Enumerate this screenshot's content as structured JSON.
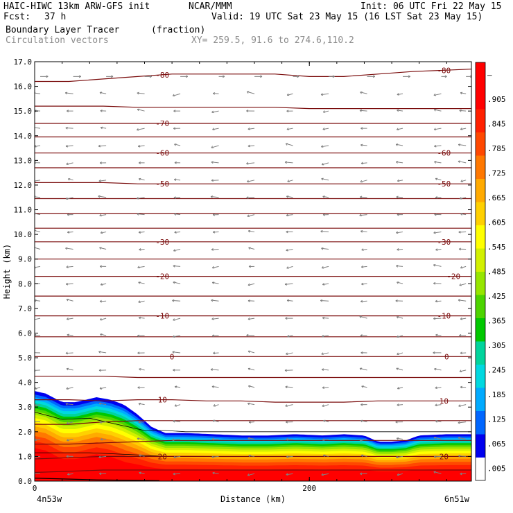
{
  "header": {
    "model": "HAIC-HIWC 13km ARW-GFS init",
    "center": "NCAR/MMM",
    "init": "Init: 06 UTC Fri 22 May 15",
    "fcst_label": "Fcst:",
    "fcst_value": "37 h",
    "valid": "Valid: 19 UTC Sat 23 May 15 (16 LST Sat 23 May 15)",
    "field1_name": "Boundary Layer Tracer",
    "field1_units": "(fraction)",
    "field2_name": "Circulation vectors",
    "xy_range": "XY= 259.5, 91.6 to 274.6,110.2"
  },
  "chart_data": {
    "type": "heatmap",
    "title": "Boundary Layer Tracer",
    "xlabel": "Distance (km)",
    "ylabel": "Height (km)",
    "xlim": [
      0,
      318
    ],
    "ylim": [
      0,
      17
    ],
    "x_ticks": [
      {
        "v": 0,
        "label": "0"
      },
      {
        "v": 200,
        "label": "200"
      }
    ],
    "x_end_labels": {
      "left": "4n53w",
      "right": "6n51w"
    },
    "y_ticks": [
      "0.0",
      "1.0",
      "2.0",
      "3.0",
      "4.0",
      "5.0",
      "6.0",
      "7.0",
      "8.0",
      "9.0",
      "10.0",
      "11.0",
      "12.0",
      "13.0",
      "14.0",
      "15.0",
      "16.0",
      "17.0"
    ],
    "colorbar": {
      "labels": [
        ".005",
        ".065",
        ".125",
        ".185",
        ".245",
        ".305",
        ".365",
        ".425",
        ".485",
        ".545",
        ".605",
        ".665",
        ".725",
        ".785",
        ".845",
        ".905",
        "–"
      ],
      "colors": [
        "#ffffff",
        "#0000ee",
        "#0066ff",
        "#00aaff",
        "#00d8e0",
        "#00d49c",
        "#00c800",
        "#4cd400",
        "#96e600",
        "#d2f000",
        "#ffff00",
        "#ffd000",
        "#ffaa00",
        "#ff7800",
        "#ff4800",
        "#ff2000",
        "#ff0000",
        "#ff0000"
      ]
    },
    "tracer_top_km": {
      "x": [
        0,
        8,
        20,
        30,
        45,
        55,
        65,
        75,
        85,
        95,
        110,
        130,
        150,
        170,
        190,
        210,
        225,
        240,
        250,
        260,
        270,
        280,
        300,
        318
      ],
      "y": [
        3.65,
        3.55,
        3.2,
        3.2,
        3.4,
        3.3,
        3.1,
        2.7,
        2.2,
        1.95,
        1.95,
        1.9,
        1.85,
        1.85,
        1.9,
        1.85,
        1.9,
        1.85,
        1.6,
        1.6,
        1.65,
        1.85,
        1.9,
        1.9
      ]
    },
    "isotherms": [
      {
        "label": "-80",
        "y": [
          16.2,
          16.2,
          16.3,
          16.4,
          16.5,
          16.5,
          16.5,
          16.5,
          16.4,
          16.4,
          16.5,
          16.6,
          16.7
        ],
        "label_x": [
          93,
          298
        ]
      },
      {
        "label": "",
        "y": [
          15.2,
          15.2,
          15.2,
          15.15,
          15.15,
          15.15,
          15.15,
          15.15,
          15.1,
          15.1,
          15.1,
          15.1,
          15.1
        ],
        "label_x": []
      },
      {
        "label": "-70",
        "y": [
          14.5,
          14.5,
          14.5,
          14.5,
          14.5,
          14.5,
          14.5,
          14.5,
          14.5,
          14.5,
          14.5,
          14.5,
          14.5
        ],
        "label_x": [
          93
        ]
      },
      {
        "label": "",
        "y": [
          13.95,
          13.95,
          13.95,
          13.95,
          13.95,
          13.95,
          13.95,
          13.95,
          13.95,
          13.95,
          13.95,
          13.95,
          13.95
        ],
        "label_x": []
      },
      {
        "label": "-60",
        "y": [
          13.3,
          13.3,
          13.3,
          13.3,
          13.3,
          13.3,
          13.3,
          13.3,
          13.3,
          13.3,
          13.3,
          13.3,
          13.3
        ],
        "label_x": [
          93,
          298
        ]
      },
      {
        "label": "",
        "y": [
          12.7,
          12.7,
          12.7,
          12.7,
          12.7,
          12.7,
          12.7,
          12.7,
          12.7,
          12.7,
          12.7,
          12.7,
          12.7
        ],
        "label_x": []
      },
      {
        "label": "-50",
        "y": [
          12.1,
          12.1,
          12.1,
          12.05,
          12.05,
          12.05,
          12.05,
          12.05,
          12.05,
          12.05,
          12.05,
          12.05,
          12.05
        ],
        "label_x": [
          93,
          298
        ]
      },
      {
        "label": "",
        "y": [
          11.45,
          11.45,
          11.45,
          11.45,
          11.45,
          11.45,
          11.45,
          11.45,
          11.45,
          11.45,
          11.45,
          11.45,
          11.45
        ],
        "label_x": []
      },
      {
        "label": "",
        "y": [
          10.85,
          10.85,
          10.85,
          10.85,
          10.85,
          10.85,
          10.85,
          10.85,
          10.85,
          10.85,
          10.85,
          10.85,
          10.85
        ],
        "label_x": []
      },
      {
        "label": "",
        "y": [
          10.25,
          10.25,
          10.25,
          10.25,
          10.25,
          10.25,
          10.25,
          10.25,
          10.25,
          10.25,
          10.25,
          10.25,
          10.25
        ],
        "label_x": []
      },
      {
        "label": "-30",
        "y": [
          9.7,
          9.7,
          9.7,
          9.7,
          9.7,
          9.7,
          9.7,
          9.7,
          9.7,
          9.7,
          9.7,
          9.7,
          9.7
        ],
        "label_x": [
          93,
          298
        ]
      },
      {
        "label": "",
        "y": [
          9.0,
          9.0,
          9.0,
          9.0,
          9.0,
          9.0,
          9.0,
          9.0,
          9.0,
          9.0,
          9.0,
          9.0,
          9.0
        ],
        "label_x": []
      },
      {
        "label": "-20",
        "y": [
          8.3,
          8.3,
          8.3,
          8.3,
          8.3,
          8.3,
          8.3,
          8.3,
          8.3,
          8.3,
          8.3,
          8.3,
          8.3
        ],
        "label_x": [
          93,
          305
        ]
      },
      {
        "label": "",
        "y": [
          7.5,
          7.5,
          7.5,
          7.5,
          7.5,
          7.5,
          7.5,
          7.5,
          7.5,
          7.5,
          7.5,
          7.5,
          7.5
        ],
        "label_x": []
      },
      {
        "label": "-10",
        "y": [
          6.7,
          6.7,
          6.7,
          6.7,
          6.7,
          6.7,
          6.7,
          6.7,
          6.7,
          6.7,
          6.7,
          6.7,
          6.7
        ],
        "label_x": [
          93,
          298
        ]
      },
      {
        "label": "",
        "y": [
          5.85,
          5.85,
          5.85,
          5.85,
          5.85,
          5.85,
          5.85,
          5.85,
          5.85,
          5.85,
          5.85,
          5.85,
          5.85
        ],
        "label_x": []
      },
      {
        "label": "0",
        "y": [
          5.05,
          5.05,
          5.05,
          5.05,
          5.05,
          5.05,
          5.05,
          5.05,
          5.05,
          5.05,
          5.05,
          5.05,
          5.05
        ],
        "label_x": [
          100,
          300
        ]
      },
      {
        "label": "",
        "y": [
          4.25,
          4.25,
          4.25,
          4.2,
          4.2,
          4.2,
          4.2,
          4.2,
          4.2,
          4.2,
          4.2,
          4.2,
          4.2
        ],
        "label_x": []
      },
      {
        "label": "10",
        "y": [
          3.3,
          3.3,
          3.25,
          3.3,
          3.3,
          3.25,
          3.25,
          3.2,
          3.2,
          3.2,
          3.25,
          3.25,
          3.25
        ],
        "label_x": [
          93,
          298
        ]
      },
      {
        "label": "",
        "y": [
          2.3,
          2.3,
          2.4,
          2.45,
          2.45,
          2.45,
          2.45,
          2.45,
          2.45,
          2.45,
          2.45,
          2.45,
          2.45
        ],
        "label_x": []
      },
      {
        "label": "",
        "y": [
          1.5,
          1.5,
          1.55,
          1.6,
          1.65,
          1.65,
          1.65,
          1.65,
          1.65,
          1.65,
          1.65,
          1.65,
          1.65
        ],
        "label_x": []
      },
      {
        "label": "20",
        "y": [
          0.9,
          0.95,
          1.0,
          1.0,
          1.0,
          1.0,
          1.0,
          1.0,
          1.0,
          1.0,
          1.0,
          1.0,
          1.0
        ],
        "label_x": [
          93,
          298
        ]
      },
      {
        "label": "",
        "y": [
          0.35,
          0.4,
          0.45,
          0.45,
          0.45,
          0.45,
          0.45,
          0.45,
          0.45,
          0.45,
          0.45,
          0.45,
          0.45
        ],
        "label_x": []
      }
    ],
    "tracer_contours": [
      {
        "x": [
          0,
          20,
          40,
          60,
          80,
          95,
          110,
          318
        ],
        "y": [
          2.8,
          2.5,
          2.55,
          2.3,
          2.05,
          2.05,
          2.0,
          2.0
        ]
      },
      {
        "x": [
          0,
          20,
          40,
          60,
          80,
          95,
          318
        ],
        "y": [
          1.15,
          1.15,
          1.15,
          1.1,
          1.05,
          1.0,
          1.0
        ]
      }
    ],
    "isotherm_x": [
      0,
      25,
      50,
      75,
      100,
      125,
      150,
      175,
      200,
      225,
      250,
      275,
      318
    ],
    "colors": {
      "isotherm": "#7a0c0c",
      "vector": "#808080",
      "tracer_contour": "#000000"
    }
  }
}
